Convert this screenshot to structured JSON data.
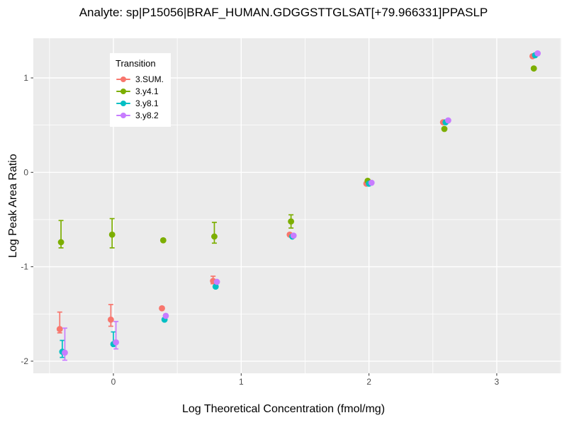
{
  "title": "Analyte: sp|P15056|BRAF_HUMAN.GDGGSTTGLSAT[+79.966331]PPASLP",
  "axes": {
    "x": {
      "label": "Log Theoretical Concentration (fmol/mg)",
      "major_ticks": [
        0,
        1,
        2,
        3
      ],
      "minor_ticks": [
        -0.5,
        0.5,
        1.5,
        2.5,
        3.5
      ]
    },
    "y": {
      "label": "Log Peak Area Ratio",
      "major_ticks": [
        1,
        0,
        -1,
        -2
      ],
      "minor_ticks": [
        0.5,
        -0.5,
        -1.5
      ]
    }
  },
  "legend": {
    "title": "Transition",
    "items": [
      {
        "label": "3.SUM.",
        "color": "#F8766D"
      },
      {
        "label": "3.y4.1",
        "color": "#7CAE00"
      },
      {
        "label": "3.y8.1",
        "color": "#00BFC4"
      },
      {
        "label": "3.y8.2",
        "color": "#C77CFF"
      }
    ]
  },
  "colors": {
    "panel_bg": "#EBEBEB",
    "grid": "#FFFFFF",
    "axis_text": "#4D4D4D",
    "tick_mark": "#333333"
  },
  "chart_data": {
    "type": "scatter",
    "subtype": "pointrange-with-errorbars",
    "title": "Analyte: sp|P15056|BRAF_HUMAN.GDGGSTTGLSAT[+79.966331]PPASLP",
    "xlabel": "Log Theoretical Concentration (fmol/mg)",
    "ylabel": "Log Peak Area Ratio",
    "x_range": [
      -0.63,
      3.51
    ],
    "y_range": [
      -2.13,
      1.42
    ],
    "grid": true,
    "legend_position": "inside-top-left",
    "nominal_x_positions": [
      -0.4,
      0.0,
      0.4,
      0.8,
      1.4,
      2.0,
      2.6,
      3.3
    ],
    "series": [
      {
        "name": "3.SUM.",
        "color": "#F8766D",
        "points": [
          {
            "x": -0.42,
            "y": -1.66,
            "lo": -1.7,
            "hi": -1.48
          },
          {
            "x": -0.02,
            "y": -1.56,
            "lo": -1.63,
            "hi": -1.4
          },
          {
            "x": 0.38,
            "y": -1.44,
            "lo": null,
            "hi": null
          },
          {
            "x": 0.78,
            "y": -1.15,
            "lo": -1.18,
            "hi": -1.1
          },
          {
            "x": 1.38,
            "y": -0.66,
            "lo": null,
            "hi": null
          },
          {
            "x": 1.98,
            "y": -0.12,
            "lo": null,
            "hi": null
          },
          {
            "x": 2.58,
            "y": 0.53,
            "lo": null,
            "hi": null
          },
          {
            "x": 3.28,
            "y": 1.23,
            "lo": null,
            "hi": null
          }
        ]
      },
      {
        "name": "3.y4.1",
        "color": "#7CAE00",
        "points": [
          {
            "x": -0.41,
            "y": -0.74,
            "lo": -0.8,
            "hi": -0.51
          },
          {
            "x": -0.01,
            "y": -0.66,
            "lo": -0.8,
            "hi": -0.49
          },
          {
            "x": 0.39,
            "y": -0.72,
            "lo": null,
            "hi": null
          },
          {
            "x": 0.79,
            "y": -0.68,
            "lo": -0.75,
            "hi": -0.53
          },
          {
            "x": 1.39,
            "y": -0.52,
            "lo": -0.59,
            "hi": -0.45
          },
          {
            "x": 1.99,
            "y": -0.09,
            "lo": null,
            "hi": null
          },
          {
            "x": 2.59,
            "y": 0.46,
            "lo": null,
            "hi": null
          },
          {
            "x": 3.29,
            "y": 1.1,
            "lo": null,
            "hi": null
          }
        ]
      },
      {
        "name": "3.y8.1",
        "color": "#00BFC4",
        "points": [
          {
            "x": -0.4,
            "y": -1.9,
            "lo": -1.96,
            "hi": -1.78
          },
          {
            "x": 0.0,
            "y": -1.82,
            "lo": -1.83,
            "hi": -1.69
          },
          {
            "x": 0.4,
            "y": -1.56,
            "lo": null,
            "hi": null
          },
          {
            "x": 0.8,
            "y": -1.21,
            "lo": null,
            "hi": null
          },
          {
            "x": 1.4,
            "y": -0.68,
            "lo": null,
            "hi": null
          },
          {
            "x": 2.0,
            "y": -0.12,
            "lo": null,
            "hi": null
          },
          {
            "x": 2.6,
            "y": 0.53,
            "lo": null,
            "hi": null
          },
          {
            "x": 3.3,
            "y": 1.24,
            "lo": null,
            "hi": null
          }
        ]
      },
      {
        "name": "3.y8.2",
        "color": "#C77CFF",
        "points": [
          {
            "x": -0.38,
            "y": -1.91,
            "lo": -1.99,
            "hi": -1.65
          },
          {
            "x": 0.02,
            "y": -1.8,
            "lo": -1.87,
            "hi": -1.58
          },
          {
            "x": 0.41,
            "y": -1.52,
            "lo": null,
            "hi": null
          },
          {
            "x": 0.81,
            "y": -1.16,
            "lo": null,
            "hi": null
          },
          {
            "x": 1.41,
            "y": -0.67,
            "lo": null,
            "hi": null
          },
          {
            "x": 2.02,
            "y": -0.11,
            "lo": null,
            "hi": null
          },
          {
            "x": 2.62,
            "y": 0.55,
            "lo": null,
            "hi": null
          },
          {
            "x": 3.32,
            "y": 1.26,
            "lo": null,
            "hi": null
          }
        ]
      }
    ]
  }
}
